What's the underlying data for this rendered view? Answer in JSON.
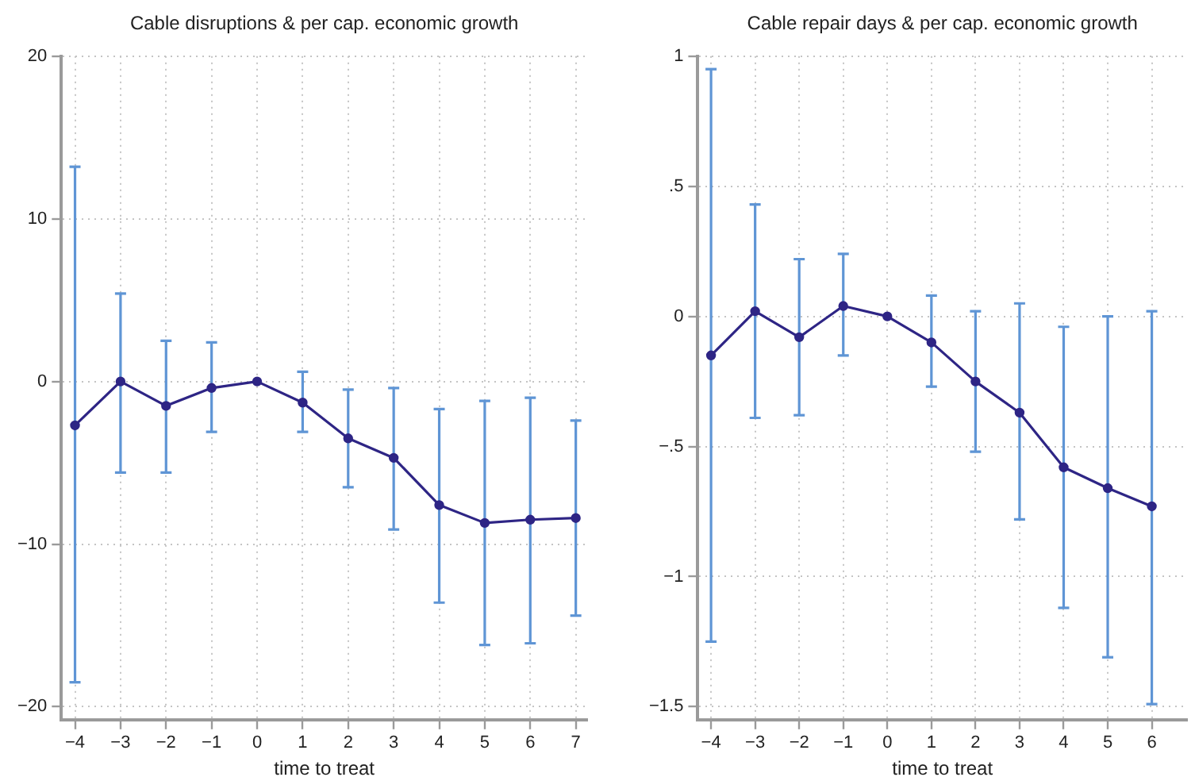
{
  "chart_data": [
    {
      "type": "line",
      "title": "Cable disruptions & per cap. economic growth",
      "xlabel": "time to treat",
      "x": [
        -4,
        -3,
        -2,
        -1,
        0,
        1,
        2,
        3,
        4,
        5,
        6,
        7
      ],
      "values": [
        -2.7,
        0,
        -1.5,
        -0.4,
        0,
        -1.3,
        -3.5,
        -4.7,
        -7.6,
        -8.7,
        -8.5,
        -8.4
      ],
      "errors": [
        [
          -18.5,
          13.2
        ],
        [
          -5.6,
          5.4
        ],
        [
          -5.6,
          2.5
        ],
        [
          -3.1,
          2.4
        ],
        null,
        [
          -3.1,
          0.6
        ],
        [
          -6.5,
          -0.5
        ],
        [
          -9.1,
          -0.4
        ],
        [
          -13.6,
          -1.7
        ],
        [
          -16.2,
          -1.2
        ],
        [
          -16.1,
          -1.0
        ],
        [
          -14.4,
          -2.4
        ]
      ],
      "color": "#2e2585",
      "marker": "circle",
      "line_style": "solid",
      "grid": true,
      "xlim": [
        -4.3,
        7.25
      ],
      "xticks": [
        {
          "value": -4,
          "label": "−4"
        },
        {
          "value": -3,
          "label": "−3"
        },
        {
          "value": -2,
          "label": "−2"
        },
        {
          "value": -1,
          "label": "−1"
        },
        0,
        1,
        2,
        3,
        4,
        5,
        6,
        7
      ],
      "ylim": [
        -20.8,
        20
      ],
      "yticks": [
        {
          "value": -20,
          "label": "−20"
        },
        {
          "value": -10,
          "label": "−10"
        },
        0,
        10,
        20
      ]
    },
    {
      "type": "line",
      "title": "Cable repair days & per cap. economic growth",
      "xlabel": "time to treat",
      "x": [
        -4,
        -3,
        -2,
        -1,
        0,
        1,
        2,
        3,
        4,
        5,
        6
      ],
      "values": [
        -0.15,
        0.02,
        -0.08,
        0.04,
        0,
        -0.1,
        -0.25,
        -0.37,
        -0.58,
        -0.66,
        -0.73
      ],
      "errors": [
        [
          -1.25,
          0.95
        ],
        [
          -0.39,
          0.43
        ],
        [
          -0.38,
          0.22
        ],
        [
          -0.15,
          0.24
        ],
        null,
        [
          -0.27,
          0.08
        ],
        [
          -0.52,
          0.02
        ],
        [
          -0.78,
          0.05
        ],
        [
          -1.12,
          -0.04
        ],
        [
          -1.31,
          0
        ],
        [
          -1.49,
          0.02
        ]
      ],
      "color": "#2e2585",
      "marker": "circle",
      "line_style": "solid",
      "grid": true,
      "xlim": [
        -4.3,
        6.8
      ],
      "xticks": [
        {
          "value": -4,
          "label": "−4"
        },
        {
          "value": -3,
          "label": "−3"
        },
        {
          "value": -2,
          "label": "−2"
        },
        {
          "value": -1,
          "label": "−1"
        },
        0,
        1,
        2,
        3,
        4,
        5,
        6
      ],
      "ylim": [
        -1.55,
        1
      ],
      "yticks": [
        {
          "value": -1.5,
          "label": "−1.5"
        },
        {
          "value": -1,
          "label": "−1"
        },
        {
          "value": -0.5,
          "label": "−.5"
        },
        0,
        {
          "value": 0.5,
          "label": ".5"
        },
        1
      ]
    }
  ]
}
